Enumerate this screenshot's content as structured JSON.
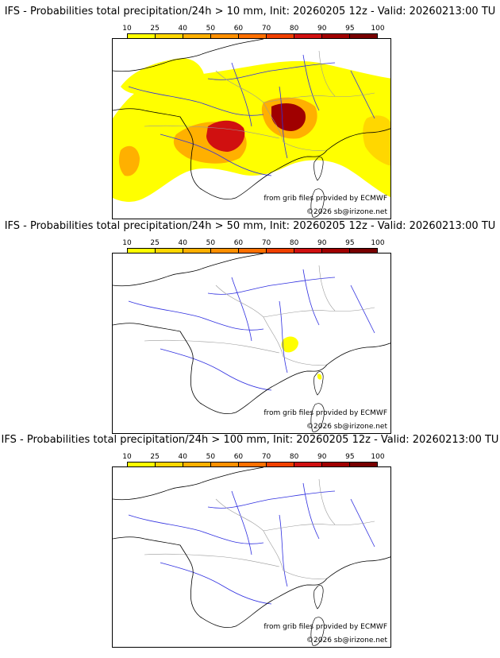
{
  "legend": {
    "ticks": [
      "10",
      "25",
      "40",
      "50",
      "60",
      "70",
      "80",
      "90",
      "95",
      "100"
    ],
    "colors": [
      "#ffff00",
      "#ffd700",
      "#ffb000",
      "#ff9000",
      "#ff7000",
      "#f04000",
      "#d01010",
      "#a00000",
      "#780000",
      "#4a0000"
    ]
  },
  "panels": [
    {
      "title": "IFS - Probabilities total precipitation/24h > 10 mm, Init: 20260205 12z - Valid: 20260213:00 TU",
      "credit_grib": "from grib files provided by ECMWF",
      "credit_copy": "©2026 sb@irizone.net",
      "fill_level": "high"
    },
    {
      "title": "IFS - Probabilities total precipitation/24h > 50 mm, Init: 20260205 12z - Valid: 20260213:00 TU",
      "credit_grib": "from grib files provided by ECMWF",
      "credit_copy": "©2026 sb@irizone.net",
      "fill_level": "low"
    },
    {
      "title": "IFS - Probabilities total precipitation/24h > 100 mm, Init: 20260205 12z - Valid: 20260213:00 TU",
      "credit_grib": "from grib files provided by ECMWF",
      "credit_copy": "©2026 sb@irizone.net",
      "fill_level": "none"
    }
  ]
}
